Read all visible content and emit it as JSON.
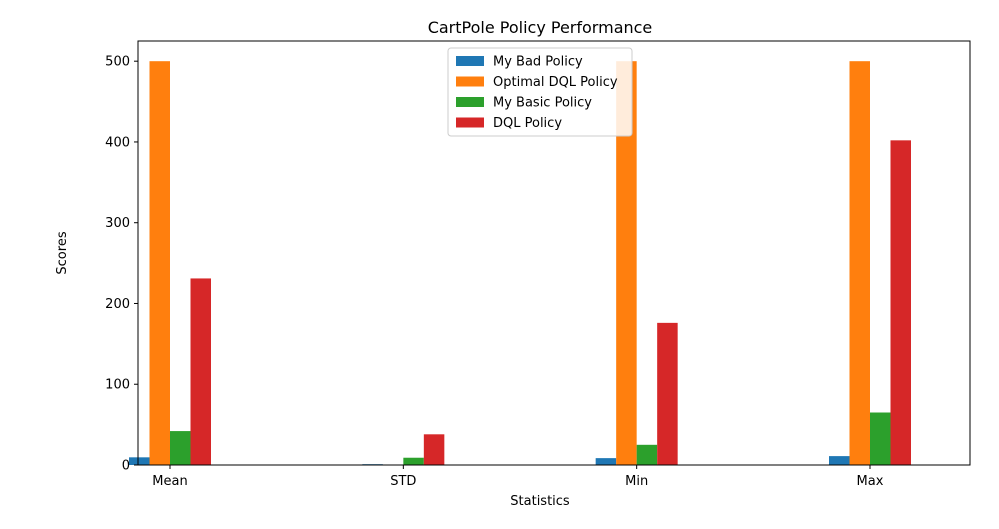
{
  "chart_data": {
    "type": "bar",
    "title": "CartPole Policy Performance",
    "xlabel": "Statistics",
    "ylabel": "Scores",
    "categories": [
      "Mean",
      "STD",
      "Min",
      "Max"
    ],
    "ylim": [
      0,
      525
    ],
    "yticks": [
      0,
      100,
      200,
      300,
      400,
      500
    ],
    "legend_position": "top-center",
    "grid": false,
    "series": [
      {
        "name": "My Bad Policy",
        "color": "#1f77b4",
        "values": [
          9.5,
          1.0,
          8.5,
          11.0
        ]
      },
      {
        "name": "Optimal DQL Policy",
        "color": "#ff7f0e",
        "values": [
          500,
          0,
          500,
          500
        ]
      },
      {
        "name": "My Basic Policy",
        "color": "#2ca02c",
        "values": [
          42,
          9,
          25,
          65
        ]
      },
      {
        "name": "DQL Policy",
        "color": "#d62728",
        "values": [
          231,
          38,
          176,
          402
        ]
      }
    ]
  }
}
